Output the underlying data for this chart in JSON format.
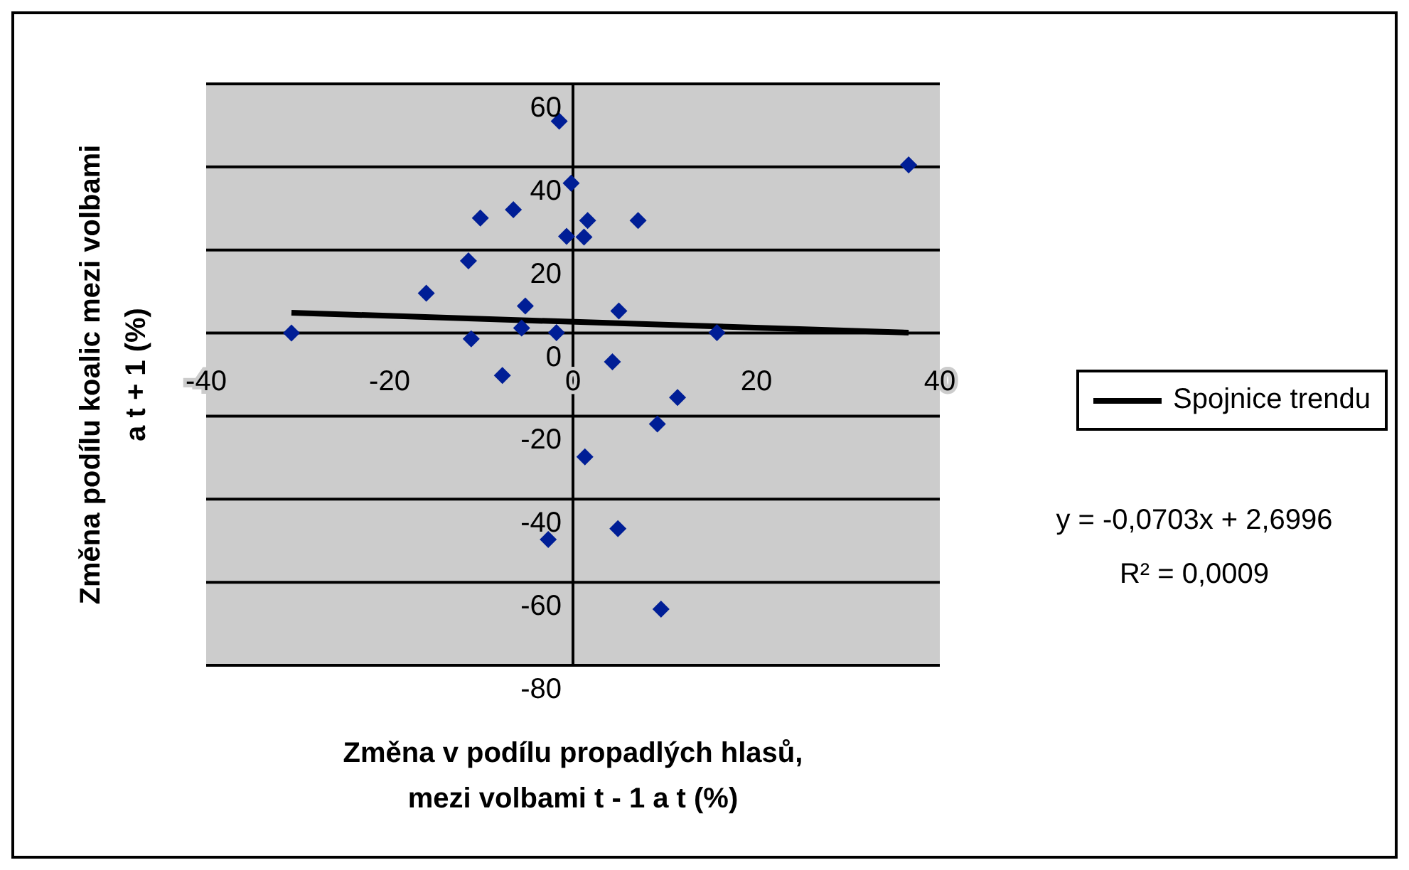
{
  "chart_data": {
    "type": "scatter",
    "xlabel": "Změna v podílu propadlých hlasů,\nmezi volbami t - 1 a t (%)",
    "ylabel": "Změna podílu koalic mezi volbami\na t + 1 (%)",
    "xlim": [
      -40,
      40
    ],
    "xticks": [
      -40,
      -20,
      0,
      20,
      40
    ],
    "ylim": [
      -80,
      60
    ],
    "yticks": [
      -80,
      -60,
      -40,
      -20,
      0,
      20,
      40,
      60
    ],
    "grid": "y",
    "marker": "diamond",
    "legend": "right",
    "x": [
      -30.7,
      -16,
      -11.4,
      -10.1,
      -6.5,
      -1.5,
      -0.2,
      -0.7,
      -5.2,
      -5.6,
      -11.1,
      -1.8,
      36.6,
      1.6,
      1.2,
      7.1,
      5,
      15.7,
      4.3,
      -7.7,
      11.4,
      9.2,
      1.3,
      4.9,
      -2.7,
      9.6
    ],
    "series": [
      {
        "color": "#001e96",
        "values": [
          0,
          9.6,
          17.4,
          27.7,
          29.7,
          51,
          36.1,
          23.3,
          6.5,
          1.2,
          -1.4,
          0.1,
          40.5,
          27.1,
          23.1,
          27.1,
          5.3,
          0.1,
          -6.9,
          -10.2,
          -15.5,
          -21.9,
          -29.8,
          -47.1,
          -49.7,
          -66.5
        ]
      },
      {
        "type": "line",
        "name": "Spojnice trendu",
        "color": "#000000",
        "x": [
          -30.7,
          36.6
        ],
        "values": [
          4.9,
          0.1
        ],
        "marker": "none"
      }
    ],
    "annotations": [
      "y = -0,0703x + 2,6996",
      "R² = 0,0009"
    ]
  }
}
